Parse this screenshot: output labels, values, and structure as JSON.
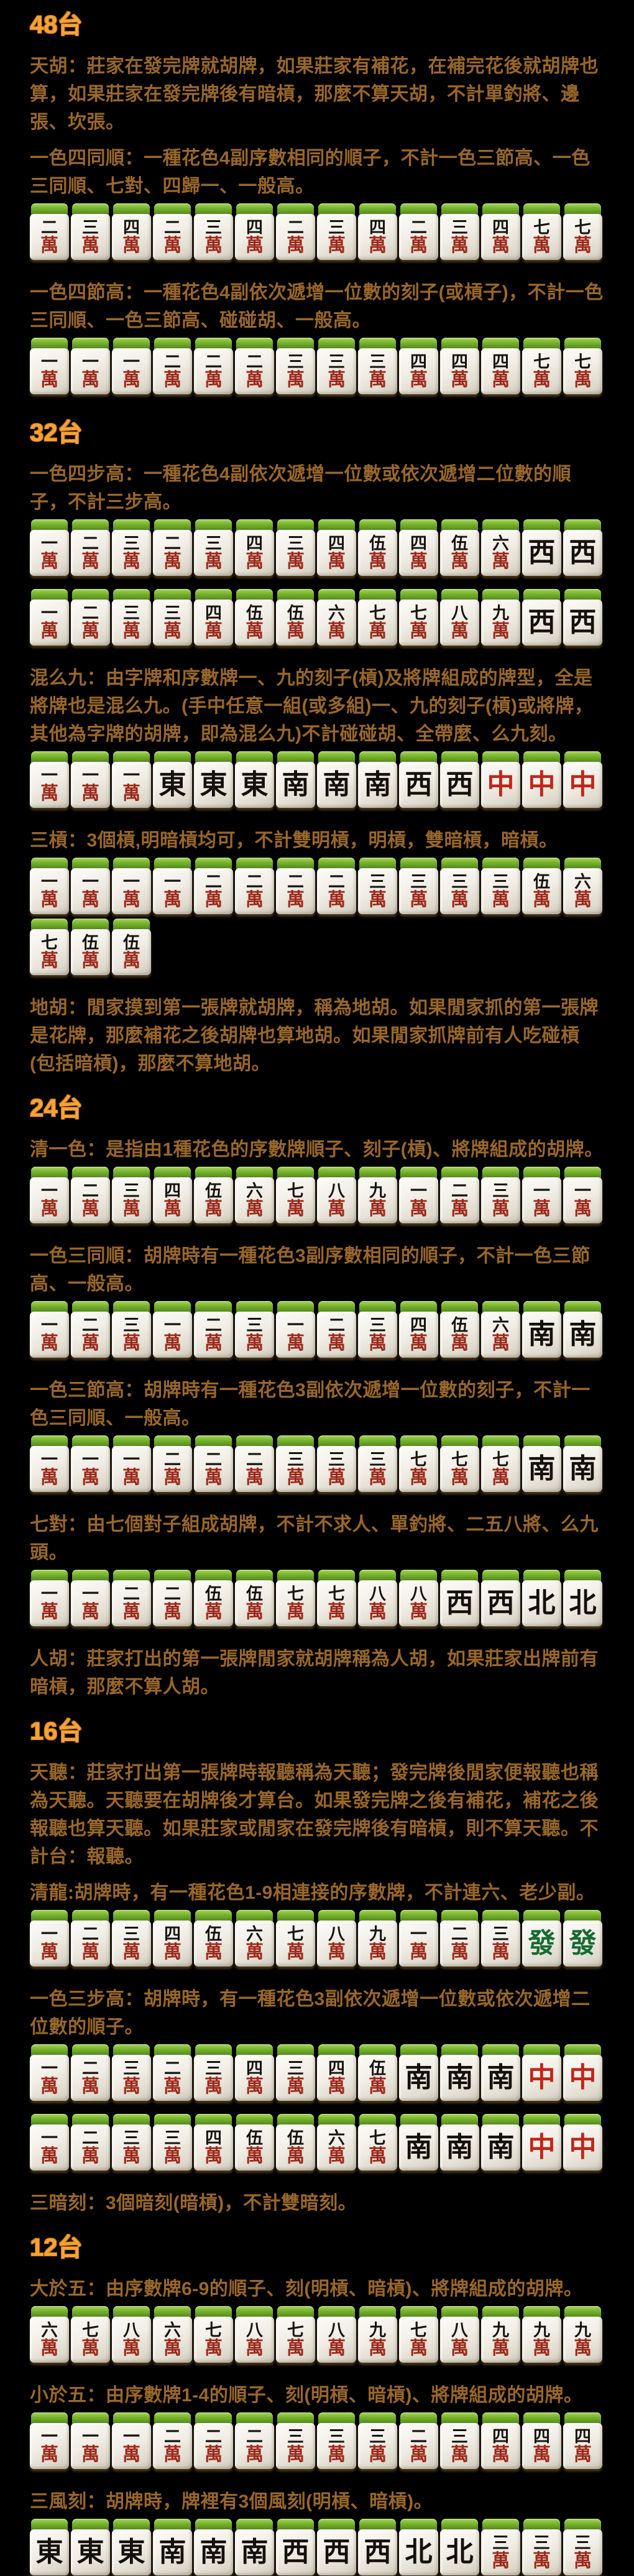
{
  "page": {
    "background": "#000000",
    "header_color": "#F5A339",
    "body_text_color": "#99672A",
    "tile_wan_red": "#9E2A1C",
    "tile_black": "#14100c",
    "dragon_red": "#C12619",
    "dragon_green": "#166B31",
    "tile_back_green": "#7cb82f"
  },
  "tile_glyphs": {
    "1w": [
      "一",
      "萬"
    ],
    "2w": [
      "二",
      "萬"
    ],
    "3w": [
      "三",
      "萬"
    ],
    "4w": [
      "四",
      "萬"
    ],
    "5w": [
      "伍",
      "萬"
    ],
    "6w": [
      "六",
      "萬"
    ],
    "7w": [
      "七",
      "萬"
    ],
    "8w": [
      "八",
      "萬"
    ],
    "9w": [
      "九",
      "萬"
    ],
    "E": [
      "東"
    ],
    "S": [
      "南"
    ],
    "W": [
      "西"
    ],
    "N": [
      "北"
    ],
    "C": [
      "中"
    ],
    "F": [
      "發"
    ]
  },
  "honor_style": {
    "E": "black",
    "S": "black",
    "W": "black",
    "N": "black",
    "C": "red",
    "F": "green"
  },
  "blocks": [
    {
      "type": "header",
      "id": "tai-48",
      "text": "48台"
    },
    {
      "type": "para",
      "id": "rule-tianhu",
      "text": "天胡：莊家在發完牌就胡牌，如果莊家有補花，在補完花後就胡牌也算，如果莊家在發完牌後有暗槓，那麼不算天胡，不計單釣將、邊張、坎張。"
    },
    {
      "type": "para",
      "id": "rule-yise-si-tongshun",
      "text": "一色四同順：一種花色4副序數相同的順子，不計一色三節高、一色三同順、七對、四歸一、一般高。"
    },
    {
      "type": "tiles",
      "id": "tiles-yise-si-tongshun",
      "tiles": [
        "2w",
        "3w",
        "4w",
        "2w",
        "3w",
        "4w",
        "2w",
        "3w",
        "4w",
        "2w",
        "3w",
        "4w",
        "7w",
        "7w"
      ]
    },
    {
      "type": "para",
      "id": "rule-yise-si-jiegao",
      "text": "一色四節高：一種花色4副依次遞增一位數的刻子(或槓子)，不計一色三同順、一色三節高、碰碰胡、一般高。"
    },
    {
      "type": "tiles",
      "id": "tiles-yise-si-jiegao",
      "tiles": [
        "1w",
        "1w",
        "1w",
        "2w",
        "2w",
        "2w",
        "3w",
        "3w",
        "3w",
        "4w",
        "4w",
        "4w",
        "7w",
        "7w"
      ]
    },
    {
      "type": "header",
      "id": "tai-32",
      "text": "32台"
    },
    {
      "type": "para",
      "id": "rule-yise-si-bugao",
      "text": "一色四步高：一種花色4副依次遞增一位數或依次遞增二位數的順子，不計三步高。"
    },
    {
      "type": "tiles",
      "id": "tiles-yise-si-bugao-1",
      "tiles": [
        "1w",
        "2w",
        "3w",
        "2w",
        "3w",
        "4w",
        "3w",
        "4w",
        "5w",
        "4w",
        "5w",
        "6w",
        "W",
        "W"
      ]
    },
    {
      "type": "tiles",
      "id": "tiles-yise-si-bugao-2",
      "tiles": [
        "1w",
        "2w",
        "3w",
        "3w",
        "4w",
        "5w",
        "5w",
        "6w",
        "7w",
        "7w",
        "8w",
        "9w",
        "W",
        "W"
      ]
    },
    {
      "type": "para",
      "id": "rule-hunyaojiu",
      "text": "混么九：由字牌和序數牌一、九的刻子(槓)及將牌組成的牌型，全是將牌也是混么九。(手中任意一組(或多組)一、九的刻子(槓)或將牌，其他為字牌的胡牌，即為混么九)不計碰碰胡、全帶麼、么九刻。"
    },
    {
      "type": "tiles",
      "id": "tiles-hunyaojiu",
      "tiles": [
        "1w",
        "1w",
        "1w",
        "E",
        "E",
        "E",
        "S",
        "S",
        "S",
        "W",
        "W",
        "C",
        "C",
        "C"
      ]
    },
    {
      "type": "para",
      "id": "rule-sangang",
      "text": "三槓：3個槓,明暗槓均可，不計雙明槓，明槓，雙暗槓，暗槓。"
    },
    {
      "type": "tiles",
      "id": "tiles-sangang",
      "tiles": [
        "1w",
        "1w",
        "1w",
        "1w",
        "2w",
        "2w",
        "2w",
        "2w",
        "3w",
        "3w",
        "3w",
        "3w",
        "5w",
        "6w",
        "7w",
        "5w",
        "5w"
      ]
    },
    {
      "type": "para",
      "id": "rule-dihu",
      "text": "地胡：閒家摸到第一張牌就胡牌，稱為地胡。如果閒家抓的第一張牌是花牌，那麼補花之後胡牌也算地胡。如果閒家抓牌前有人吃碰槓(包括暗槓)，那麼不算地胡。"
    },
    {
      "type": "header",
      "id": "tai-24",
      "text": "24台"
    },
    {
      "type": "para",
      "id": "rule-qingyise",
      "text": "清一色：是指由1種花色的序數牌順子、刻子(槓)、將牌組成的胡牌。"
    },
    {
      "type": "tiles",
      "id": "tiles-qingyise",
      "tiles": [
        "1w",
        "2w",
        "3w",
        "4w",
        "5w",
        "6w",
        "7w",
        "8w",
        "9w",
        "1w",
        "2w",
        "3w",
        "1w",
        "1w"
      ]
    },
    {
      "type": "para",
      "id": "rule-yise-san-tongshun",
      "text": "一色三同順：胡牌時有一種花色3副序數相同的順子，不計一色三節高、一般高。"
    },
    {
      "type": "tiles",
      "id": "tiles-yise-san-tongshun",
      "tiles": [
        "1w",
        "2w",
        "3w",
        "1w",
        "2w",
        "3w",
        "1w",
        "2w",
        "3w",
        "4w",
        "5w",
        "6w",
        "S",
        "S"
      ]
    },
    {
      "type": "para",
      "id": "rule-yise-san-jiegao",
      "text": "一色三節高：胡牌時有一種花色3副依次遞增一位數的刻子，不計一色三同順、一般高。"
    },
    {
      "type": "tiles",
      "id": "tiles-yise-san-jiegao",
      "tiles": [
        "1w",
        "1w",
        "1w",
        "2w",
        "2w",
        "2w",
        "3w",
        "3w",
        "3w",
        "7w",
        "7w",
        "7w",
        "S",
        "S"
      ]
    },
    {
      "type": "para",
      "id": "rule-qidui",
      "text": "七對：由七個對子組成胡牌，不計不求人、單釣將、二五八將、么九頭。"
    },
    {
      "type": "tiles",
      "id": "tiles-qidui",
      "tiles": [
        "1w",
        "1w",
        "2w",
        "2w",
        "5w",
        "5w",
        "7w",
        "7w",
        "8w",
        "8w",
        "W",
        "W",
        "N",
        "N"
      ]
    },
    {
      "type": "para",
      "id": "rule-renhu",
      "text": "人胡：莊家打出的第一張牌閒家就胡牌稱為人胡，如果莊家出牌前有暗槓，那麼不算人胡。"
    },
    {
      "type": "header",
      "id": "tai-16",
      "text": "16台"
    },
    {
      "type": "para",
      "id": "rule-tianting",
      "text": "天聽：莊家打出第一張牌時報聽稱為天聽；發完牌後閒家便報聽也稱為天聽。天聽要在胡牌後才算台。如果發完牌之後有補花，補花之後報聽也算天聽。如果莊家或閒家在發完牌後有暗槓，則不算天聽。不計台：報聽。"
    },
    {
      "type": "para",
      "id": "rule-qinglong",
      "text": "清龍:胡牌時，有一種花色1-9相連接的序數牌，不計連六、老少副。"
    },
    {
      "type": "tiles",
      "id": "tiles-qinglong",
      "tiles": [
        "1w",
        "2w",
        "3w",
        "4w",
        "5w",
        "6w",
        "7w",
        "8w",
        "9w",
        "1w",
        "2w",
        "3w",
        "F",
        "F"
      ]
    },
    {
      "type": "para",
      "id": "rule-yise-san-bugao",
      "text": "一色三步高：胡牌時，有一種花色3副依次遞增一位數或依次遞增二位數的順子。"
    },
    {
      "type": "tiles",
      "id": "tiles-yise-san-bugao-1",
      "tiles": [
        "1w",
        "2w",
        "3w",
        "2w",
        "3w",
        "4w",
        "3w",
        "4w",
        "5w",
        "S",
        "S",
        "S",
        "C",
        "C"
      ]
    },
    {
      "type": "tiles",
      "id": "tiles-yise-san-bugao-2",
      "tiles": [
        "1w",
        "2w",
        "3w",
        "3w",
        "4w",
        "5w",
        "5w",
        "6w",
        "7w",
        "S",
        "S",
        "S",
        "C",
        "C"
      ]
    },
    {
      "type": "para",
      "id": "rule-sananke",
      "text": "三暗刻：3個暗刻(暗槓)，不計雙暗刻。"
    },
    {
      "type": "header",
      "id": "tai-12",
      "text": "12台"
    },
    {
      "type": "para",
      "id": "rule-dayuwu",
      "text": "大於五：由序數牌6-9的順子、刻(明槓、暗槓)、將牌組成的胡牌。"
    },
    {
      "type": "tiles",
      "id": "tiles-dayuwu",
      "tiles": [
        "6w",
        "7w",
        "8w",
        "6w",
        "7w",
        "8w",
        "7w",
        "8w",
        "9w",
        "7w",
        "8w",
        "9w",
        "9w",
        "9w"
      ]
    },
    {
      "type": "para",
      "id": "rule-xiaoyuwu",
      "text": "小於五：由序數牌1-4的順子、刻(明槓、暗槓)、將牌組成的胡牌。"
    },
    {
      "type": "tiles",
      "id": "tiles-xiaoyuwu",
      "tiles": [
        "1w",
        "1w",
        "1w",
        "2w",
        "2w",
        "2w",
        "3w",
        "3w",
        "3w",
        "2w",
        "3w",
        "4w",
        "4w",
        "4w"
      ]
    },
    {
      "type": "para",
      "id": "rule-sanfengke",
      "text": "三風刻：胡牌時，牌裡有3個風刻(明槓、暗槓)。"
    },
    {
      "type": "tiles",
      "id": "tiles-sanfengke",
      "tiles": [
        "E",
        "E",
        "E",
        "S",
        "S",
        "S",
        "W",
        "W",
        "W",
        "N",
        "N",
        "3w",
        "3w",
        "3w"
      ]
    }
  ]
}
